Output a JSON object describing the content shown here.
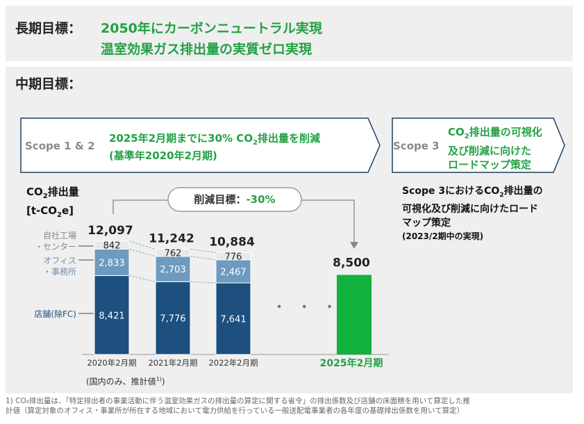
{
  "long_term": {
    "label": "長期目標：",
    "goal1": "2050年にカーボンニュートラル実現",
    "goal2": "温室効果ガス排出量の実質ゼロ実現"
  },
  "mid_term": {
    "label": "中期目標：",
    "scope12": {
      "label": "Scope 1 & 2",
      "text1_pre": "2025年2月期までに30% CO",
      "text1_sub": "2",
      "text1_post": "排出量を削減",
      "text2": "(基準年2020年2月期)"
    },
    "scope3": {
      "label": "Scope 3",
      "line1_pre": "CO",
      "line1_sub": "2",
      "line1_post": "排出量の可視化",
      "line2": "及び削減に向けた",
      "line3": "ロードマップ策定"
    }
  },
  "scope3_detail": {
    "line1_pre": "Scope 3におけるCO",
    "line1_sub": "2",
    "line1_post": "排出量の",
    "line2": "可視化及び削減に向けたロード",
    "line3": "マップ策定",
    "note": "(2023/2期中の実現)"
  },
  "chart_data": {
    "type": "bar",
    "ylabel_line1_pre": "CO",
    "ylabel_line1_sub": "2",
    "ylabel_line1_post": "排出量",
    "ylabel_line2_pre": "[t-CO",
    "ylabel_line2_sub": "2",
    "ylabel_line2_post": "e]",
    "categories": [
      "2020年2月期",
      "2021年2月期",
      "2022年2月期",
      "2025年2月期"
    ],
    "series": [
      {
        "name": "店舗(除FC)",
        "color": "#1d4f7f",
        "values": [
          8421,
          7776,
          7641,
          null
        ]
      },
      {
        "name": "オフィス・事務所",
        "color": "#6f9ac0",
        "values": [
          2833,
          2703,
          2467,
          null
        ]
      },
      {
        "name": "自社工場・センター",
        "color": "#e8e8e8",
        "values": [
          842,
          762,
          776,
          null
        ]
      },
      {
        "name": "目標",
        "color": "#13b13d",
        "values": [
          null,
          null,
          null,
          8500
        ]
      }
    ],
    "totals": [
      "12,097",
      "11,242",
      "10,884",
      "8,500"
    ],
    "segment_labels": [
      [
        "8,421",
        "2,833",
        "842"
      ],
      [
        "7,776",
        "2,703",
        "762"
      ],
      [
        "7,641",
        "2,467",
        "776"
      ]
    ],
    "legend_labels": {
      "factory_line1": "自社工場",
      "factory_line2": "・センター",
      "office_line1": "オフィス",
      "office_line2": "・事務所",
      "store": "店舗(除FC)"
    },
    "reduction_label": "削減目標：",
    "reduction_value": "-30%",
    "ellipsis": "・ ・ ・",
    "footnote_scope": "(国内のみ、推計値",
    "footnote_scope_sup": "1)",
    "footnote_scope_end": ")",
    "colors": {
      "store": "#1d4f7f",
      "office": "#6f9ac0",
      "factory": "#e8e8e8",
      "target": "#13b13d",
      "accent": "#22a143"
    }
  },
  "footnote": {
    "line1": "1) CO₂排出量は、「特定排出者の事業活動に伴う温室効果ガスの排出量の算定に関する省令」の排出係数及び店舗の床面積を用いて算定した推",
    "line2": "計値（算定対象のオフィス・事業所が所在する地域において電力供給を行っている一般送配電事業者の各年度の基礎排出係数を用いて算定）"
  }
}
